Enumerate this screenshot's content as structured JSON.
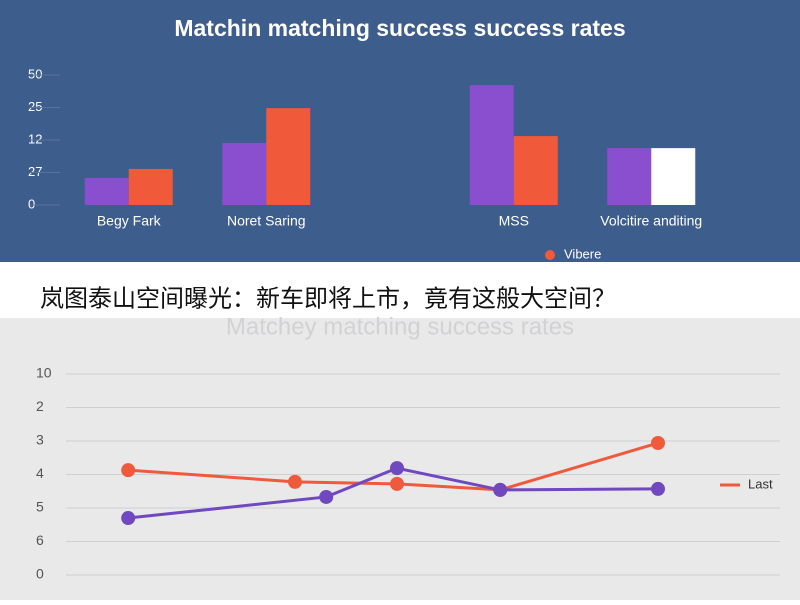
{
  "caption": "岚图泰山空间曝光：新车即将上市，竟有这般大空间？",
  "chart_data": [
    {
      "type": "bar",
      "title": "Matchin matching success success rates",
      "categories": [
        "Begy Fark",
        "Noret Saring",
        "MSS",
        "Volcitire anditing"
      ],
      "series": [
        {
          "color": "#8a4fcf",
          "values": [
            0.83,
            1.91,
            3.69,
            1.75
          ]
        },
        {
          "name": "Vibere",
          "color": "#f05a3a",
          "colors": [
            "#f05a3a",
            "#f05a3a",
            "#f05a3a",
            "#ffffff"
          ],
          "values": [
            1.11,
            2.98,
            2.12,
            1.75
          ]
        }
      ],
      "ylim": [
        0,
        4
      ],
      "yticks": [
        {
          "value": 0,
          "label": "0"
        },
        {
          "value": 1,
          "label": "27"
        },
        {
          "value": 2,
          "label": "12"
        },
        {
          "value": 3,
          "label": "25"
        },
        {
          "value": 4,
          "label": "50"
        }
      ],
      "grid": false
    },
    {
      "type": "line",
      "title": "Matchey matching success rates",
      "xlim": [
        0,
        100
      ],
      "series": [
        {
          "name": "Last",
          "color": "#ef5a3c",
          "x": [
            4.7,
            32.5,
            49.5,
            66.7,
            93
          ],
          "values": [
            3.13,
            2.78,
            2.72,
            2.54,
            3.94
          ]
        },
        {
          "color": "#7048c0",
          "x": [
            4.7,
            37.7,
            49.5,
            66.7,
            93
          ],
          "values": [
            1.7,
            2.33,
            3.19,
            2.54,
            2.57
          ]
        }
      ],
      "ylim": [
        0,
        6
      ],
      "yticks": [
        {
          "value": 0,
          "label": "0"
        },
        {
          "value": 1,
          "label": "6"
        },
        {
          "value": 2,
          "label": "5"
        },
        {
          "value": 3,
          "label": "4"
        },
        {
          "value": 4,
          "label": "3"
        },
        {
          "value": 5,
          "label": "2"
        },
        {
          "value": 6,
          "label": "10"
        }
      ],
      "grid": true
    }
  ]
}
